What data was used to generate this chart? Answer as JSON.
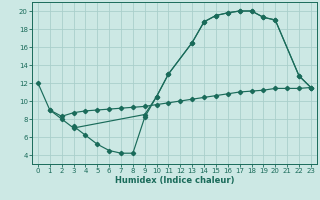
{
  "xlabel": "Humidex (Indice chaleur)",
  "xlim": [
    -0.5,
    23.5
  ],
  "ylim": [
    3,
    21
  ],
  "yticks": [
    4,
    6,
    8,
    10,
    12,
    14,
    16,
    18,
    20
  ],
  "xticks": [
    0,
    1,
    2,
    3,
    4,
    5,
    6,
    7,
    8,
    9,
    10,
    11,
    12,
    13,
    14,
    15,
    16,
    17,
    18,
    19,
    20,
    21,
    22,
    23
  ],
  "bg_color": "#cce8e4",
  "grid_color": "#aacfcb",
  "line_color": "#1a6b5a",
  "curve1_x": [
    0,
    1,
    2,
    3,
    9,
    10,
    11,
    13,
    14,
    15,
    16,
    17,
    18,
    19,
    20,
    22,
    23
  ],
  "curve1_y": [
    12,
    9,
    8,
    7,
    8.5,
    10.5,
    13,
    16.5,
    18.8,
    19.5,
    19.8,
    20,
    20,
    19.3,
    19.0,
    12.8,
    11.5
  ],
  "curve2_x": [
    1,
    2,
    3,
    4,
    5,
    6,
    7,
    8,
    9,
    10,
    11,
    12,
    13,
    14,
    15,
    16,
    17,
    18,
    19,
    20,
    21,
    22,
    23
  ],
  "curve2_y": [
    9,
    8.3,
    8.7,
    8.9,
    9.0,
    9.1,
    9.2,
    9.3,
    9.4,
    9.6,
    9.8,
    10.0,
    10.2,
    10.4,
    10.6,
    10.8,
    11.0,
    11.1,
    11.2,
    11.4,
    11.4,
    11.4,
    11.5
  ],
  "curve3_x": [
    3,
    4,
    5,
    6,
    7,
    8,
    9,
    10,
    11,
    13,
    14,
    15,
    16,
    17,
    18,
    19,
    20,
    22,
    23
  ],
  "curve3_y": [
    7.2,
    6.2,
    5.2,
    4.5,
    4.2,
    4.2,
    8.2,
    10.5,
    13.0,
    16.5,
    18.8,
    19.5,
    19.8,
    20.0,
    20.0,
    19.3,
    19.0,
    12.8,
    11.5
  ]
}
